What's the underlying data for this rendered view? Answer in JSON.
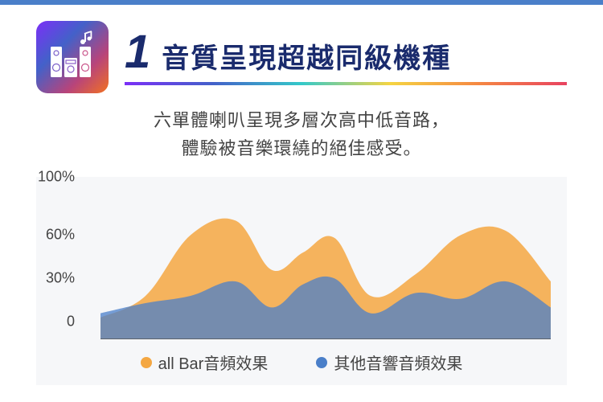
{
  "header": {
    "number": "1",
    "title": "音質呈現超越同級機種",
    "subtitle_line1": "六單體喇叭呈現多層次高中低音路，",
    "subtitle_line2": "體驗被音樂環繞的絕佳感受。"
  },
  "icon": {
    "name": "speaker-music-icon",
    "gradient_colors": [
      "#7b2ff7",
      "#4361c9",
      "#b8447a",
      "#f27121"
    ]
  },
  "rainbow_colors": [
    "#7b2ff7",
    "#4361c9",
    "#34c9c9",
    "#f5d442",
    "#f58742",
    "#e84260"
  ],
  "chart": {
    "type": "area",
    "background_color": "#f6f7f9",
    "ylim": [
      0,
      100
    ],
    "y_ticks": [
      {
        "value": 100,
        "label": "100%"
      },
      {
        "value": 60,
        "label": "60%"
      },
      {
        "value": 30,
        "label": "30%"
      },
      {
        "value": 0,
        "label": "0"
      }
    ],
    "axis_color": "#555555",
    "label_fontsize": 18,
    "label_color": "#444444",
    "series": [
      {
        "name": "all Bar音頻效果",
        "color": "#f4a742",
        "fill_opacity": 0.85,
        "points": [
          {
            "x": 0,
            "y": 15
          },
          {
            "x": 10,
            "y": 30
          },
          {
            "x": 20,
            "y": 72
          },
          {
            "x": 30,
            "y": 82
          },
          {
            "x": 38,
            "y": 48
          },
          {
            "x": 45,
            "y": 60
          },
          {
            "x": 52,
            "y": 70
          },
          {
            "x": 60,
            "y": 30
          },
          {
            "x": 70,
            "y": 45
          },
          {
            "x": 80,
            "y": 72
          },
          {
            "x": 90,
            "y": 75
          },
          {
            "x": 100,
            "y": 40
          }
        ]
      },
      {
        "name": "其他音響音頻效果",
        "color": "#4a7fc9",
        "fill_opacity": 0.75,
        "points": [
          {
            "x": 0,
            "y": 18
          },
          {
            "x": 10,
            "y": 25
          },
          {
            "x": 20,
            "y": 30
          },
          {
            "x": 30,
            "y": 40
          },
          {
            "x": 38,
            "y": 22
          },
          {
            "x": 45,
            "y": 38
          },
          {
            "x": 52,
            "y": 42
          },
          {
            "x": 60,
            "y": 18
          },
          {
            "x": 70,
            "y": 32
          },
          {
            "x": 80,
            "y": 28
          },
          {
            "x": 90,
            "y": 40
          },
          {
            "x": 100,
            "y": 22
          }
        ]
      }
    ],
    "legend": [
      {
        "label": "all Bar音頻效果",
        "color": "#f4a742"
      },
      {
        "label": "其他音響音頻效果",
        "color": "#4a7fc9"
      }
    ]
  }
}
